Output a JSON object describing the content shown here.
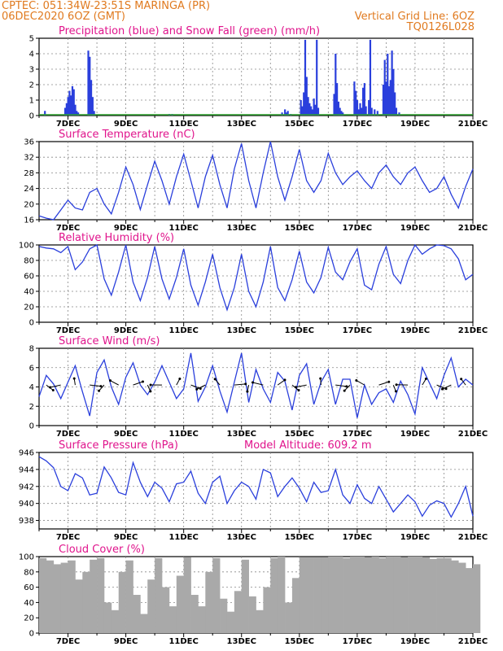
{
  "header": {
    "left_line1": "CPTEC:   051:34W-23:51S   MARINGA (PR)",
    "left_line2": "06DEC2020 6OZ (GMT)",
    "right_line1": "Vertical Grid Line: 6OZ",
    "right_line2": "TQ0126L028"
  },
  "colors": {
    "header": "#e07a1f",
    "title": "#e0148c",
    "line": "#2a3fdc",
    "snow": "#2ca02c",
    "cloud": "#a9a9a9"
  },
  "x_ticks": [
    "7DEC",
    "9DEC",
    "11DEC",
    "13DEC",
    "15DEC",
    "17DEC",
    "19DEC",
    "21DEC"
  ],
  "chart_data": [
    {
      "id": "precip",
      "type": "bar",
      "title": "Precipitation (blue) and Snow Fall (green) (mm/h)",
      "ylim": [
        0,
        5
      ],
      "yticks": [
        0,
        1,
        2,
        3,
        4,
        5
      ],
      "series": [
        {
          "name": "Precipitation",
          "color": "#2a3fdc",
          "x": [
            0.2,
            0.9,
            0.95,
            1.0,
            1.05,
            1.1,
            1.15,
            1.2,
            1.25,
            1.3,
            1.35,
            1.7,
            1.75,
            1.8,
            1.85,
            1.9,
            4.5,
            4.6,
            8.4,
            8.5,
            8.55,
            8.6,
            8.7,
            9.05,
            9.1,
            9.15,
            9.2,
            9.25,
            9.3,
            9.35,
            9.4,
            9.45,
            9.5,
            9.55,
            9.6,
            9.65,
            10.2,
            10.25,
            10.3,
            10.35,
            10.4,
            10.45,
            10.5,
            10.9,
            10.95,
            11.0,
            11.05,
            11.1,
            11.15,
            11.2,
            11.25,
            11.3,
            11.4,
            11.45,
            11.5,
            11.6,
            11.7,
            11.9,
            11.95,
            12.0,
            12.05,
            12.1,
            12.15,
            12.2,
            12.25,
            12.3,
            12.35,
            12.45
          ],
          "values": [
            0.3,
            0.5,
            0.8,
            1.2,
            1.6,
            1.3,
            1.9,
            1.7,
            0.7,
            0.3,
            0.2,
            4.2,
            3.8,
            2.3,
            1.2,
            0.3,
            0.1,
            0.1,
            0.2,
            0.4,
            0.2,
            0.3,
            0.1,
            1.0,
            0.6,
            1.5,
            4.9,
            2.5,
            1.2,
            0.8,
            0.6,
            0.4,
            1.1,
            0.7,
            4.9,
            0.5,
            1.4,
            4.0,
            2.1,
            0.9,
            0.5,
            0.3,
            0.2,
            2.2,
            1.6,
            1.0,
            0.4,
            0.8,
            0.5,
            1.8,
            2.1,
            0.6,
            1.0,
            4.9,
            0.5,
            0.4,
            0.3,
            2.0,
            3.6,
            2.2,
            4.0,
            1.9,
            2.3,
            4.2,
            3.0,
            1.5,
            0.5,
            0.2
          ]
        },
        {
          "name": "Snow Fall",
          "color": "#2ca02c",
          "x": [],
          "values": []
        }
      ]
    },
    {
      "id": "temp",
      "type": "line",
      "title": "Surface Temperature (nC)",
      "ylim": [
        16,
        36
      ],
      "yticks": [
        16,
        20,
        24,
        28,
        32,
        36
      ],
      "x": [
        0,
        0.25,
        0.5,
        0.75,
        1,
        1.25,
        1.5,
        1.75,
        2,
        2.25,
        2.5,
        2.75,
        3,
        3.25,
        3.5,
        3.75,
        4,
        4.25,
        4.5,
        4.75,
        5,
        5.25,
        5.5,
        5.75,
        6,
        6.25,
        6.5,
        6.75,
        7,
        7.25,
        7.5,
        7.75,
        8,
        8.25,
        8.5,
        8.75,
        9,
        9.25,
        9.5,
        9.75,
        10,
        10.25,
        10.5,
        10.75,
        11,
        11.25,
        11.5,
        11.75,
        12,
        12.25,
        12.5,
        12.75,
        13,
        13.25,
        13.5,
        13.75,
        14,
        14.25,
        14.5,
        14.75,
        15
      ],
      "values": [
        17,
        16.4,
        16,
        18.5,
        21,
        19,
        18.5,
        23,
        24,
        20,
        17.5,
        23,
        29.5,
        25,
        18.6,
        25,
        31,
        26,
        20,
        27,
        32.8,
        26,
        19,
        27,
        32.5,
        25,
        19,
        29,
        35.5,
        26,
        19,
        28,
        36,
        27,
        21,
        27,
        34,
        26,
        23,
        26,
        33,
        28,
        25,
        27,
        28.5,
        26,
        24,
        28,
        30,
        27,
        25,
        28,
        29.5,
        26,
        23,
        24,
        27,
        22.5,
        19,
        24.5,
        29
      ]
    },
    {
      "id": "rh",
      "type": "line",
      "title": "Relative Humidity (%)",
      "ylim": [
        0,
        100
      ],
      "yticks": [
        0,
        20,
        40,
        60,
        80,
        100
      ],
      "x": [
        0,
        0.25,
        0.5,
        0.75,
        1,
        1.25,
        1.5,
        1.75,
        2,
        2.25,
        2.5,
        2.75,
        3,
        3.25,
        3.5,
        3.75,
        4,
        4.25,
        4.5,
        4.75,
        5,
        5.25,
        5.5,
        5.75,
        6,
        6.25,
        6.5,
        6.75,
        7,
        7.25,
        7.5,
        7.75,
        8,
        8.25,
        8.5,
        8.75,
        9,
        9.25,
        9.5,
        9.75,
        10,
        10.25,
        10.5,
        10.75,
        11,
        11.25,
        11.5,
        11.75,
        12,
        12.25,
        12.5,
        12.75,
        13,
        13.25,
        13.5,
        13.75,
        14,
        14.25,
        14.5,
        14.75,
        15
      ],
      "values": [
        98,
        96,
        95,
        90,
        98,
        68,
        78,
        95,
        100,
        56,
        35,
        65,
        100,
        52,
        28,
        58,
        98,
        56,
        30,
        58,
        95,
        48,
        22,
        52,
        88,
        45,
        16,
        45,
        88,
        40,
        20,
        52,
        98,
        45,
        28,
        55,
        92,
        52,
        38,
        58,
        97,
        65,
        55,
        78,
        95,
        48,
        42,
        75,
        98,
        62,
        50,
        80,
        100,
        88,
        95,
        100,
        99,
        95,
        82,
        55,
        62
      ]
    },
    {
      "id": "wind",
      "type": "line",
      "title": "Surface Wind (m/s)",
      "ylim": [
        0,
        8
      ],
      "yticks": [
        0,
        2,
        4,
        6,
        8
      ],
      "x": [
        0,
        0.25,
        0.5,
        0.75,
        1,
        1.25,
        1.5,
        1.75,
        2,
        2.25,
        2.5,
        2.75,
        3,
        3.25,
        3.5,
        3.75,
        4,
        4.25,
        4.5,
        4.75,
        5,
        5.25,
        5.5,
        5.75,
        6,
        6.25,
        6.5,
        6.75,
        7,
        7.25,
        7.5,
        7.75,
        8,
        8.25,
        8.5,
        8.75,
        9,
        9.25,
        9.5,
        9.75,
        10,
        10.25,
        10.5,
        10.75,
        11,
        11.25,
        11.5,
        11.75,
        12,
        12.25,
        12.5,
        12.75,
        13,
        13.25,
        13.5,
        13.75,
        14,
        14.25,
        14.5,
        14.75,
        15
      ],
      "values": [
        3,
        5.2,
        4.3,
        2.8,
        4.5,
        6.2,
        3.5,
        1,
        5.5,
        6.8,
        4,
        2.2,
        5,
        6.5,
        4.2,
        3.2,
        4.5,
        6.2,
        4.5,
        2.8,
        3.8,
        7.5,
        2.5,
        4,
        6.2,
        3.6,
        1.4,
        4.5,
        7.5,
        2.4,
        5.8,
        3.8,
        2.4,
        5.5,
        4.6,
        1.6,
        5.2,
        6.4,
        2.2,
        4.5,
        5.8,
        2.2,
        4.8,
        4.8,
        0.8,
        4.2,
        2.2,
        3.4,
        3.8,
        2.4,
        4.6,
        3.2,
        1.2,
        6,
        4.4,
        2.8,
        5.2,
        7,
        4,
        4.8,
        4.2
      ]
    },
    {
      "id": "pressure",
      "type": "line",
      "title": "Surface Pressure (hPa)",
      "annotation": "Model Altitude: 609.2 m",
      "ylim": [
        937,
        946
      ],
      "yticks": [
        938,
        940,
        942,
        944,
        946
      ],
      "x": [
        0,
        0.25,
        0.5,
        0.75,
        1,
        1.25,
        1.5,
        1.75,
        2,
        2.25,
        2.5,
        2.75,
        3,
        3.25,
        3.5,
        3.75,
        4,
        4.25,
        4.5,
        4.75,
        5,
        5.25,
        5.5,
        5.75,
        6,
        6.25,
        6.5,
        6.75,
        7,
        7.25,
        7.5,
        7.75,
        8,
        8.25,
        8.5,
        8.75,
        9,
        9.25,
        9.5,
        9.75,
        10,
        10.25,
        10.5,
        10.75,
        11,
        11.25,
        11.5,
        11.75,
        12,
        12.25,
        12.5,
        12.75,
        13,
        13.25,
        13.5,
        13.75,
        14,
        14.25,
        14.5,
        14.75,
        15
      ],
      "values": [
        945.5,
        945,
        944.2,
        942,
        941.5,
        943.5,
        943,
        941,
        941.2,
        944.3,
        943,
        941.3,
        941,
        944.8,
        942.5,
        940.8,
        942.5,
        941.8,
        940.2,
        942.3,
        942.5,
        943.8,
        941.2,
        940,
        942.5,
        943.2,
        940,
        941.5,
        942.5,
        942,
        940.5,
        944,
        943.6,
        940.8,
        942,
        943,
        941.8,
        940.2,
        942.5,
        941.3,
        941.5,
        944,
        941,
        940,
        942.2,
        940.6,
        940,
        942,
        940.5,
        939,
        940,
        941,
        940.2,
        938.5,
        939.8,
        940.3,
        940,
        938.4,
        940,
        942,
        938.5
      ]
    },
    {
      "id": "cloud",
      "type": "area",
      "title": "Cloud Cover (%)",
      "ylim": [
        0,
        100
      ],
      "yticks": [
        0,
        20,
        40,
        60,
        80,
        100
      ],
      "x": [
        0,
        0.25,
        0.5,
        0.75,
        1,
        1.25,
        1.5,
        1.75,
        2,
        2.25,
        2.5,
        2.75,
        3,
        3.25,
        3.5,
        3.75,
        4,
        4.25,
        4.5,
        4.75,
        5,
        5.25,
        5.5,
        5.75,
        6,
        6.25,
        6.5,
        6.75,
        7,
        7.25,
        7.5,
        7.75,
        8,
        8.25,
        8.5,
        8.75,
        9,
        9.25,
        9.5,
        9.75,
        10,
        10.25,
        10.5,
        10.75,
        11,
        11.25,
        11.5,
        11.75,
        12,
        12.25,
        12.5,
        12.75,
        13,
        13.25,
        13.5,
        13.75,
        14,
        14.25,
        14.5,
        14.75,
        15
      ],
      "values": [
        98,
        95,
        90,
        92,
        95,
        70,
        80,
        96,
        98,
        40,
        30,
        80,
        95,
        50,
        25,
        70,
        98,
        60,
        35,
        75,
        99,
        50,
        35,
        80,
        98,
        45,
        28,
        55,
        96,
        48,
        30,
        60,
        98,
        100,
        40,
        72,
        99,
        99,
        99,
        99,
        100,
        100,
        98,
        100,
        100,
        99,
        100,
        98,
        100,
        100,
        99,
        100,
        100,
        99,
        97,
        98,
        98,
        95,
        92,
        85,
        90
      ]
    }
  ]
}
